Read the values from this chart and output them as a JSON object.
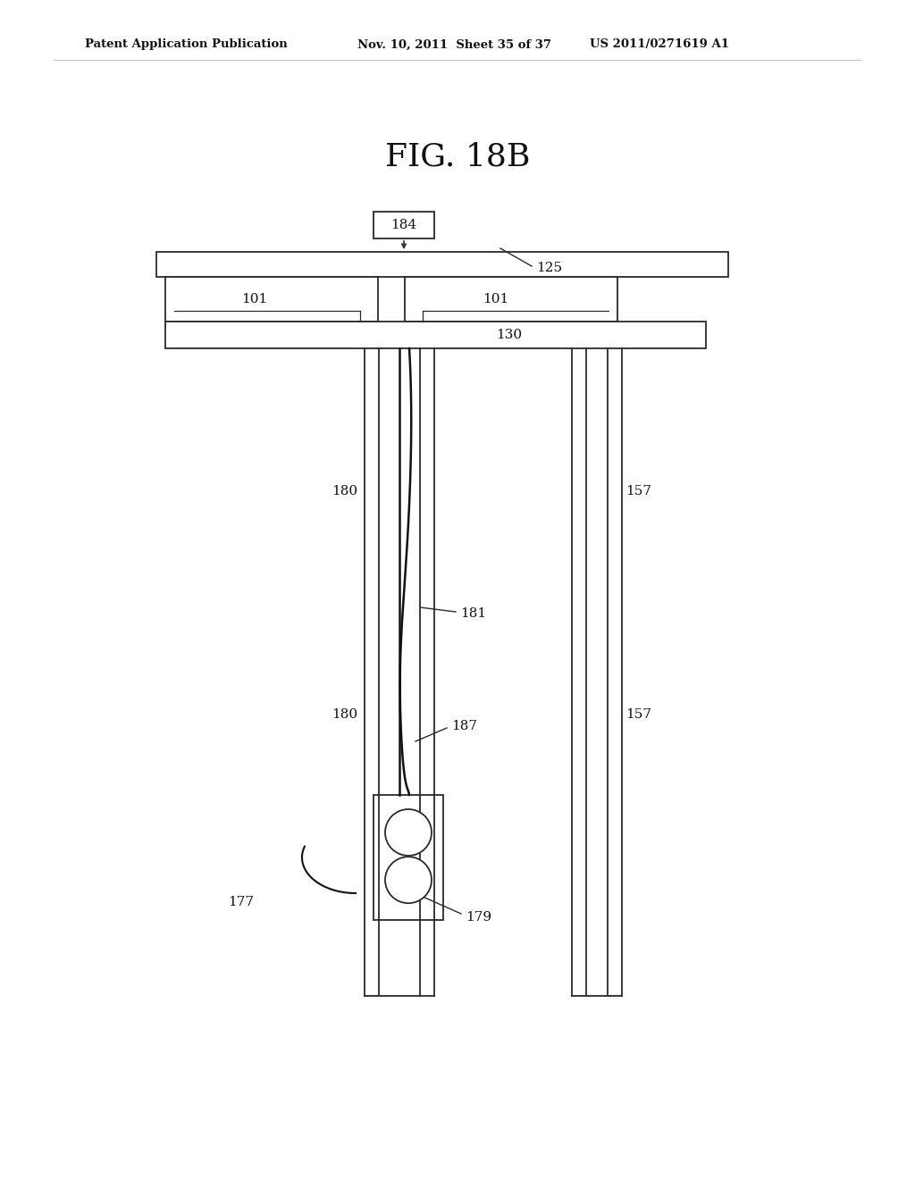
{
  "bg_color": "#ffffff",
  "line_color": "#2a2a2a",
  "header_text_left": "Patent Application Publication",
  "header_text_mid": "Nov. 10, 2011  Sheet 35 of 37",
  "header_text_right": "US 2011/0271619 A1",
  "fig_title": "FIG. 18B"
}
